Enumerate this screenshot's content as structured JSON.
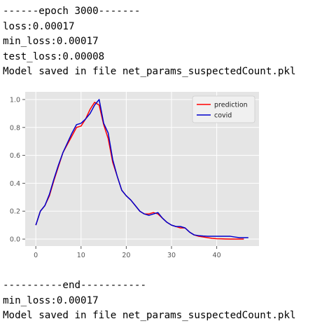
{
  "log_top": {
    "lines": [
      "------epoch 3000-------",
      "loss:0.00017",
      "min_loss:0.00017",
      "test_loss:0.00008",
      "Model saved in file net_params_suspectedCount.pkl"
    ]
  },
  "log_bottom": {
    "lines": [
      "----------end-----------",
      "min_loss:0.00017",
      "Model saved in file net_params_suspectedCount.pkl"
    ]
  },
  "chart_data": {
    "type": "line",
    "xlim": [
      -2.35,
      49.35
    ],
    "ylim": [
      -0.05,
      1.055
    ],
    "xticks": [
      0,
      10,
      20,
      30,
      40
    ],
    "yticks": [
      0.0,
      0.2,
      0.4,
      0.6,
      0.8,
      1.0
    ],
    "xtick_labels": [
      "0",
      "10",
      "20",
      "30",
      "40"
    ],
    "ytick_labels": [
      "0.0",
      "0.2",
      "0.4",
      "0.6",
      "0.8",
      "1.0"
    ],
    "grid": true,
    "background": "#e5e5e5",
    "legend_position": "top-right",
    "series": [
      {
        "name": "prediction",
        "color": "#ff0000",
        "x": [
          0,
          1,
          2,
          3,
          4,
          5,
          6,
          7,
          8,
          9,
          10,
          11,
          12,
          13,
          14,
          15,
          16,
          17,
          18,
          19,
          20,
          21,
          22,
          23,
          24,
          25,
          26,
          27,
          28,
          29,
          30,
          31,
          32,
          33,
          34,
          35,
          36,
          37,
          38,
          39,
          40,
          41,
          42,
          43,
          44,
          45,
          46
        ],
        "y": [
          0.1,
          0.2,
          0.24,
          0.31,
          0.42,
          0.52,
          0.62,
          0.68,
          0.74,
          0.8,
          0.81,
          0.86,
          0.93,
          0.98,
          0.96,
          0.82,
          0.72,
          0.55,
          0.45,
          0.35,
          0.31,
          0.28,
          0.24,
          0.2,
          0.18,
          0.18,
          0.19,
          0.18,
          0.15,
          0.12,
          0.1,
          0.09,
          0.08,
          0.08,
          0.05,
          0.03,
          0.02,
          0.015,
          0.01,
          0.005,
          0.003,
          0.002,
          0.001,
          0.0,
          0.0,
          0.0,
          0.0
        ]
      },
      {
        "name": "covid",
        "color": "#0000cc",
        "x": [
          0,
          1,
          2,
          3,
          4,
          5,
          6,
          7,
          8,
          9,
          10,
          11,
          12,
          13,
          14,
          15,
          16,
          17,
          18,
          19,
          20,
          21,
          22,
          23,
          24,
          25,
          26,
          27,
          28,
          29,
          30,
          31,
          32,
          33,
          34,
          35,
          36,
          37,
          38,
          39,
          40,
          41,
          42,
          43,
          44,
          45,
          46,
          47
        ],
        "y": [
          0.1,
          0.2,
          0.24,
          0.32,
          0.43,
          0.53,
          0.62,
          0.69,
          0.76,
          0.82,
          0.83,
          0.86,
          0.9,
          0.96,
          1.0,
          0.83,
          0.76,
          0.57,
          0.45,
          0.35,
          0.31,
          0.28,
          0.24,
          0.2,
          0.18,
          0.17,
          0.18,
          0.19,
          0.15,
          0.12,
          0.1,
          0.09,
          0.09,
          0.08,
          0.05,
          0.03,
          0.025,
          0.022,
          0.02,
          0.02,
          0.02,
          0.02,
          0.02,
          0.02,
          0.015,
          0.01,
          0.01,
          0.01
        ]
      }
    ]
  }
}
